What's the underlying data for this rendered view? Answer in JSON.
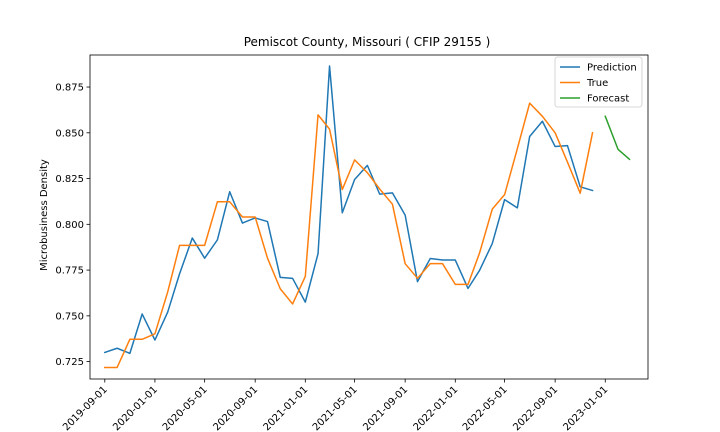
{
  "chart_data": {
    "type": "line",
    "title": "Pemiscot County, Missouri ( CFIP 29155 )",
    "xlabel": "",
    "ylabel": "Microbusiness Density",
    "x_tick_labels": [
      "2019-09-01",
      "2020-01-01",
      "2020-05-01",
      "2020-09-01",
      "2021-01-01",
      "2021-05-01",
      "2021-09-01",
      "2022-01-01",
      "2022-05-01",
      "2022-09-01",
      "2023-01-01"
    ],
    "y_ticks": [
      0.725,
      0.75,
      0.775,
      0.8,
      0.825,
      0.85,
      0.875
    ],
    "y_tick_labels": [
      "0.725",
      "0.750",
      "0.775",
      "0.800",
      "0.825",
      "0.850",
      "0.875"
    ],
    "ylim": [
      0.7155,
      0.8925
    ],
    "xlim": [
      "2019-07-27",
      "2023-04-15"
    ],
    "legend_position": "top-right",
    "grid": false,
    "series": [
      {
        "name": "Prediction",
        "color": "#1f77b4",
        "points": [
          [
            "2019-09-01",
            0.73
          ],
          [
            "2019-10-01",
            0.7323
          ],
          [
            "2019-11-01",
            0.7295
          ],
          [
            "2019-12-01",
            0.751
          ],
          [
            "2020-01-01",
            0.7368
          ],
          [
            "2020-02-01",
            0.752
          ],
          [
            "2020-03-01",
            0.773
          ],
          [
            "2020-04-01",
            0.7925
          ],
          [
            "2020-05-01",
            0.7815
          ],
          [
            "2020-06-01",
            0.7915
          ],
          [
            "2020-07-01",
            0.8178
          ],
          [
            "2020-08-01",
            0.8007
          ],
          [
            "2020-09-01",
            0.8035
          ],
          [
            "2020-10-01",
            0.8015
          ],
          [
            "2020-11-01",
            0.771
          ],
          [
            "2020-12-01",
            0.7705
          ],
          [
            "2021-01-01",
            0.7575
          ],
          [
            "2021-02-01",
            0.784
          ],
          [
            "2021-03-01",
            0.8865
          ],
          [
            "2021-04-01",
            0.8063
          ],
          [
            "2021-05-01",
            0.8245
          ],
          [
            "2021-06-01",
            0.8322
          ],
          [
            "2021-07-01",
            0.8165
          ],
          [
            "2021-08-01",
            0.8172
          ],
          [
            "2021-09-01",
            0.805
          ],
          [
            "2021-10-01",
            0.7687
          ],
          [
            "2021-11-01",
            0.7813
          ],
          [
            "2021-12-01",
            0.7805
          ],
          [
            "2022-01-01",
            0.7805
          ],
          [
            "2022-02-01",
            0.765
          ],
          [
            "2022-03-01",
            0.7748
          ],
          [
            "2022-04-01",
            0.7895
          ],
          [
            "2022-05-01",
            0.8135
          ],
          [
            "2022-06-01",
            0.809
          ],
          [
            "2022-07-01",
            0.848
          ],
          [
            "2022-08-01",
            0.8563
          ],
          [
            "2022-09-01",
            0.8425
          ],
          [
            "2022-10-01",
            0.843
          ],
          [
            "2022-11-01",
            0.8205
          ],
          [
            "2022-12-01",
            0.8185
          ]
        ]
      },
      {
        "name": "True",
        "color": "#ff7f0e",
        "points": [
          [
            "2019-09-01",
            0.7218
          ],
          [
            "2019-10-01",
            0.7218
          ],
          [
            "2019-11-01",
            0.7372
          ],
          [
            "2019-12-01",
            0.7372
          ],
          [
            "2020-01-01",
            0.7402
          ],
          [
            "2020-02-01",
            0.763
          ],
          [
            "2020-03-01",
            0.7885
          ],
          [
            "2020-04-01",
            0.7885
          ],
          [
            "2020-05-01",
            0.7885
          ],
          [
            "2020-06-01",
            0.8123
          ],
          [
            "2020-07-01",
            0.8123
          ],
          [
            "2020-08-01",
            0.804
          ],
          [
            "2020-09-01",
            0.804
          ],
          [
            "2020-10-01",
            0.7815
          ],
          [
            "2020-11-01",
            0.7648
          ],
          [
            "2020-12-01",
            0.7565
          ],
          [
            "2021-01-01",
            0.7715
          ],
          [
            "2021-02-01",
            0.8598
          ],
          [
            "2021-03-01",
            0.852
          ],
          [
            "2021-04-01",
            0.819
          ],
          [
            "2021-05-01",
            0.8352
          ],
          [
            "2021-06-01",
            0.8282
          ],
          [
            "2021-07-01",
            0.8193
          ],
          [
            "2021-08-01",
            0.811
          ],
          [
            "2021-09-01",
            0.7785
          ],
          [
            "2021-10-01",
            0.7705
          ],
          [
            "2021-11-01",
            0.7785
          ],
          [
            "2021-12-01",
            0.7785
          ],
          [
            "2022-01-01",
            0.7672
          ],
          [
            "2022-02-01",
            0.7672
          ],
          [
            "2022-03-01",
            0.7843
          ],
          [
            "2022-04-01",
            0.8083
          ],
          [
            "2022-05-01",
            0.8162
          ],
          [
            "2022-06-01",
            0.8413
          ],
          [
            "2022-07-01",
            0.8662
          ],
          [
            "2022-08-01",
            0.859
          ],
          [
            "2022-09-01",
            0.85
          ],
          [
            "2022-10-01",
            0.834
          ],
          [
            "2022-11-01",
            0.817
          ],
          [
            "2022-12-01",
            0.85
          ]
        ]
      },
      {
        "name": "Forecast",
        "color": "#2ca02c",
        "points": [
          [
            "2023-01-01",
            0.859
          ],
          [
            "2023-02-01",
            0.841
          ],
          [
            "2023-03-01",
            0.8355
          ]
        ]
      }
    ]
  }
}
